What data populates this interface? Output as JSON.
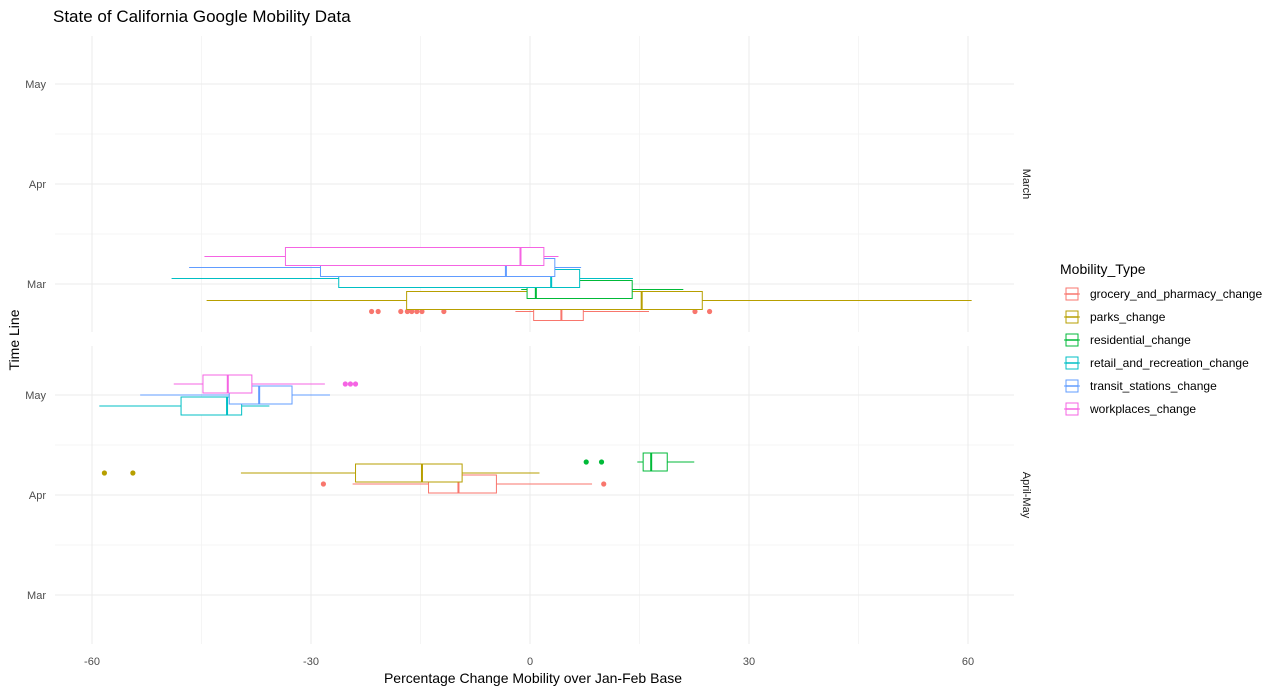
{
  "chart_data": {
    "type": "boxplot",
    "title": "State of California Google Mobility Data",
    "xlabel": "Percentage Change Mobility over Jan-Feb Base",
    "ylabel": "Time Line",
    "xlim": [
      -65,
      67
    ],
    "x_ticks": [
      -60,
      -30,
      0,
      30,
      60
    ],
    "y_ticks": [
      "Mar",
      "Apr",
      "May"
    ],
    "grid": true,
    "legend": {
      "title": "Mobility_Type",
      "placement": "right",
      "entries": [
        {
          "name": "grocery_and_pharmacy_change",
          "color": "#F8766D"
        },
        {
          "name": "parks_change",
          "color": "#B79F00"
        },
        {
          "name": "residential_change",
          "color": "#00BA38"
        },
        {
          "name": "retail_and_recreation_change",
          "color": "#00BFC4"
        },
        {
          "name": "transit_stations_change",
          "color": "#619CFF"
        },
        {
          "name": "workplaces_change",
          "color": "#F564E3"
        }
      ]
    },
    "facets": [
      {
        "label": "March",
        "boxes": [
          {
            "series": "grocery_and_pharmacy_change",
            "y": "Mar",
            "offset": -2.5,
            "min": -2,
            "q1": 0.5,
            "median": 4.3,
            "q3": 7.3,
            "max": 16.3,
            "outliers": [
              -21.7,
              -20.8,
              -17.7,
              -16.8,
              -16.2,
              -15.5,
              -14.8,
              -11.8,
              22.6,
              24.6
            ]
          },
          {
            "series": "parks_change",
            "y": "Mar",
            "offset": -1.5,
            "min": -44.3,
            "q1": -16.9,
            "median": 15.3,
            "q3": 23.6,
            "max": 60.5,
            "outliers": []
          },
          {
            "series": "residential_change",
            "y": "Mar",
            "offset": -0.5,
            "min": -1.2,
            "q1": -0.4,
            "median": 0.8,
            "q3": 14,
            "max": 21,
            "outliers": []
          },
          {
            "series": "retail_and_recreation_change",
            "y": "Mar",
            "offset": 0.5,
            "min": -49.1,
            "q1": -26.2,
            "median": 2.9,
            "q3": 6.8,
            "max": 14.1,
            "outliers": []
          },
          {
            "series": "transit_stations_change",
            "y": "Mar",
            "offset": 1.5,
            "min": -46.7,
            "q1": -28.7,
            "median": -3.3,
            "q3": 3.4,
            "max": 7,
            "outliers": []
          },
          {
            "series": "workplaces_change",
            "y": "Mar",
            "offset": 2.5,
            "min": -44.6,
            "q1": -33.5,
            "median": -1.3,
            "q3": 1.9,
            "max": 3.9,
            "outliers": []
          }
        ]
      },
      {
        "label": "April-May",
        "boxes": [
          {
            "series": "grocery_and_pharmacy_change",
            "y": "Apr",
            "offset": 1,
            "min": -24.3,
            "q1": -13.9,
            "median": -9.8,
            "q3": -4.6,
            "max": 8.5,
            "outliers": [
              -28.3,
              10.1
            ]
          },
          {
            "series": "parks_change",
            "y": "Apr",
            "offset": 2,
            "min": -39.6,
            "q1": -23.9,
            "median": -14.8,
            "q3": -9.3,
            "max": 1.3,
            "outliers": [
              -58.3,
              -54.4
            ]
          },
          {
            "series": "residential_change",
            "y": "Apr",
            "offset": 3,
            "min": 14.7,
            "q1": 15.5,
            "median": 16.6,
            "q3": 18.8,
            "max": 22.5,
            "outliers": [
              7.7,
              9.8
            ]
          },
          {
            "series": "retail_and_recreation_change",
            "y": "May",
            "offset": -1,
            "min": -59,
            "q1": -47.8,
            "median": -41.5,
            "q3": -39.5,
            "max": -35.7,
            "outliers": []
          },
          {
            "series": "transit_stations_change",
            "y": "May",
            "offset": 0,
            "min": -53.4,
            "q1": -41.2,
            "median": -37.1,
            "q3": -32.6,
            "max": -27.4,
            "outliers": []
          },
          {
            "series": "workplaces_change",
            "y": "May",
            "offset": 1,
            "min": -48.8,
            "q1": -44.8,
            "median": -41.4,
            "q3": -38.1,
            "max": -28.1,
            "outliers": [
              -25.3,
              -24.6,
              -23.9
            ]
          }
        ]
      }
    ]
  }
}
